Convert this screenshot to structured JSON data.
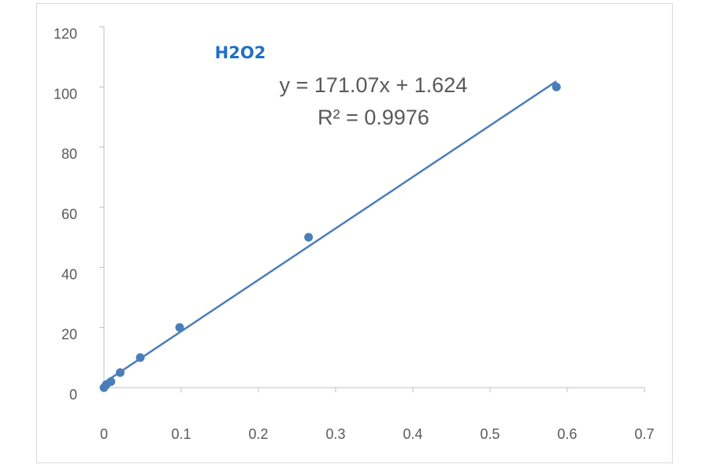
{
  "chart_data": {
    "type": "scatter",
    "title": "H2O2",
    "xlabel": "",
    "ylabel": "",
    "xlim": [
      0,
      0.7
    ],
    "ylim": [
      0,
      120
    ],
    "x_ticks": [
      "0",
      "0.1",
      "0.2",
      "0.3",
      "0.4",
      "0.5",
      "0.6",
      "0.7"
    ],
    "y_ticks": [
      "0",
      "20",
      "40",
      "60",
      "80",
      "100",
      "120"
    ],
    "grid": false,
    "legend": "none",
    "series": [
      {
        "points": [
          {
            "x": 0.0,
            "y": 0
          },
          {
            "x": 0.003,
            "y": 1
          },
          {
            "x": 0.009,
            "y": 2
          },
          {
            "x": 0.021,
            "y": 5
          },
          {
            "x": 0.047,
            "y": 10
          },
          {
            "x": 0.098,
            "y": 20
          },
          {
            "x": 0.265,
            "y": 50
          },
          {
            "x": 0.586,
            "y": 100
          }
        ],
        "color": "#4a7ebb"
      }
    ],
    "trendline": {
      "type": "linear",
      "slope": 171.07,
      "intercept": 1.624,
      "x_range": [
        0,
        0.586
      ],
      "color": "#4a7ebb",
      "equation_text": "y = 171.07x + 1.624",
      "r2_text": "R² = 0.9976"
    }
  }
}
